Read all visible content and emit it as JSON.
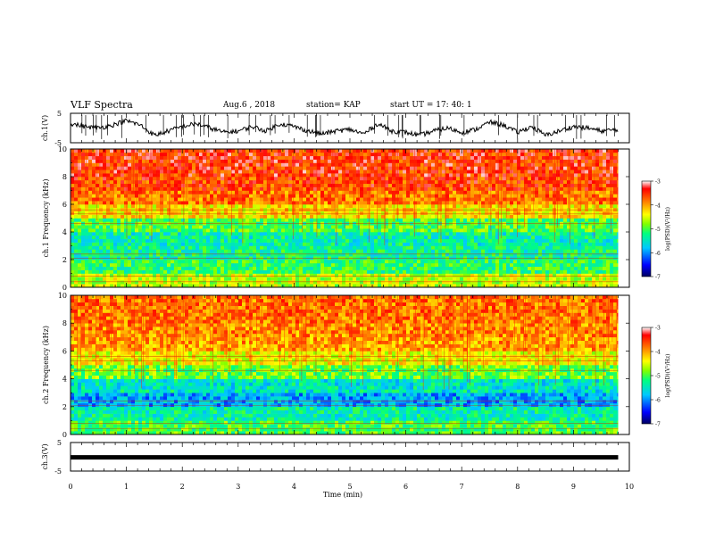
{
  "header": {
    "title": "VLF Spectra",
    "date": "Aug.6 , 2018",
    "station": "station= KAP",
    "start": "start UT = 17: 40: 1"
  },
  "chart_data": [
    {
      "type": "line",
      "panel": "waveform ch.1",
      "ylabel": "ch.1(V)",
      "ylim": [
        -5,
        5
      ],
      "yticks": [
        "5",
        "-5"
      ],
      "x": [
        0,
        0.25,
        0.5,
        0.75,
        1.0,
        1.25,
        1.5,
        1.75,
        2.0,
        2.25,
        2.5,
        2.75,
        3.0,
        3.25,
        3.5,
        3.75,
        4.0,
        4.25,
        4.5,
        4.75,
        5.0,
        5.25,
        5.5,
        5.75,
        6.0,
        6.25,
        6.5,
        6.75,
        7.0,
        7.25,
        7.5,
        7.75,
        8.0,
        8.25,
        8.5,
        8.75,
        9.0,
        9.25,
        9.5,
        9.8
      ],
      "values": [
        1.5,
        0.5,
        0.0,
        1.0,
        2.5,
        1.0,
        -2.5,
        -1.0,
        0.5,
        1.5,
        0.0,
        -1.5,
        -1.0,
        0.5,
        -1.0,
        1.5,
        0.5,
        -1.0,
        -2.0,
        -1.0,
        -0.5,
        -2.0,
        1.5,
        -1.0,
        -1.5,
        -2.5,
        -1.0,
        0.0,
        -1.5,
        -0.5,
        2.0,
        1.0,
        -1.5,
        0.5,
        -2.5,
        -1.0,
        0.5,
        0.0,
        -1.0,
        -0.5
      ]
    },
    {
      "type": "heatmap",
      "panel": "spectrogram ch.1",
      "ylabel": "ch.1 Frequency (kHz)",
      "ylim": [
        0,
        10
      ],
      "yticks": [
        "0",
        "2",
        "4",
        "6",
        "8",
        "10"
      ],
      "colorbar": {
        "label": "log(PSD)(V²/Hz)",
        "range": [
          -7,
          -3
        ],
        "ticks": [
          "-3",
          "-4",
          "-5",
          "-6",
          "-7"
        ]
      },
      "freq_khz": [
        0.5,
        1.5,
        2.5,
        3.5,
        4.5,
        5.5,
        6.5,
        7.5,
        8.5,
        9.5
      ],
      "log_psd": [
        -4.6,
        -5.1,
        -5.3,
        -5.4,
        -5.0,
        -4.3,
        -3.8,
        -3.6,
        -3.5,
        -3.5
      ]
    },
    {
      "type": "heatmap",
      "panel": "spectrogram ch.2",
      "ylabel": "ch.2 Frequency (kHz)",
      "ylim": [
        0,
        10
      ],
      "yticks": [
        "0",
        "2",
        "4",
        "6",
        "8",
        "10"
      ],
      "colorbar": {
        "label": "log(PSD)(V²/Hz)",
        "range": [
          -7,
          -3
        ],
        "ticks": [
          "-3",
          "-4",
          "-5",
          "-6",
          "-7"
        ]
      },
      "freq_khz": [
        0.5,
        1.5,
        2.5,
        3.5,
        4.5,
        5.5,
        6.5,
        7.5,
        8.5,
        9.5
      ],
      "log_psd": [
        -5.0,
        -5.4,
        -5.9,
        -5.5,
        -4.9,
        -4.4,
        -4.0,
        -3.9,
        -3.8,
        -3.8
      ]
    },
    {
      "type": "line",
      "panel": "waveform ch.3",
      "ylabel": "ch.3(V)",
      "ylim": [
        -5,
        5
      ],
      "yticks": [
        "5",
        "-5"
      ],
      "x": [
        0,
        9.8
      ],
      "values": [
        -0.2,
        -0.2
      ]
    }
  ],
  "xaxis": {
    "label": "Time (min)",
    "range": [
      0,
      10
    ],
    "ticks": [
      "0",
      "1",
      "2",
      "3",
      "4",
      "5",
      "6",
      "7",
      "8",
      "9",
      "10"
    ]
  },
  "colors": {
    "scale": [
      "#000080",
      "#0000ff",
      "#00a0ff",
      "#00ffc0",
      "#40ff40",
      "#c0ff00",
      "#ffff00",
      "#ffa000",
      "#ff4000",
      "#ff0000",
      "#ffffff"
    ],
    "axis": "#000000"
  }
}
